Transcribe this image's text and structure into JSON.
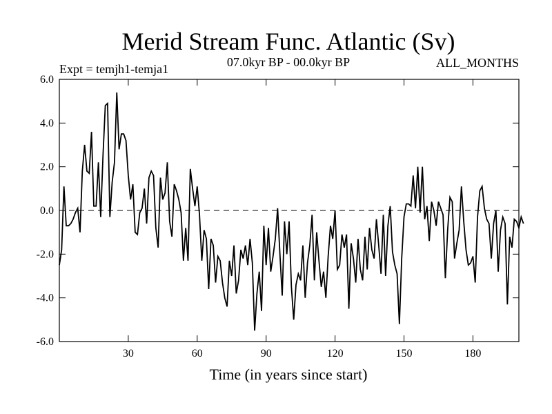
{
  "chart_data": {
    "type": "line",
    "title": "Merid Stream Func. Atlantic (Sv)",
    "subtitle_left": "Expt = temjh1-temja1",
    "subtitle_center": "07.0kyr BP - 00.0kyr BP",
    "subtitle_right": "ALL_MONTHS",
    "xlabel": "Time (in years since start)",
    "ylabel": "",
    "xlim": [
      0,
      200
    ],
    "ylim": [
      -6,
      6
    ],
    "x_ticks": [
      30,
      60,
      90,
      120,
      150,
      180
    ],
    "x_tick_labels": [
      "30",
      "60",
      "90",
      "120",
      "150",
      "180"
    ],
    "y_ticks": [
      -6,
      -4,
      -2,
      0,
      2,
      4,
      6
    ],
    "y_tick_labels": [
      "-6.0",
      "-4.0",
      "-2.0",
      "0.0",
      "2.0",
      "4.0",
      "6.0"
    ],
    "zero_line": {
      "value": 0,
      "style": "dashed"
    },
    "series": [
      {
        "name": "temjh1-temja1",
        "x_start": 0,
        "x_step": 1,
        "values": [
          -2.5,
          -1.8,
          1.1,
          -0.7,
          -0.7,
          -0.6,
          -0.4,
          -0.1,
          0.1,
          -1.0,
          1.8,
          3.0,
          1.8,
          1.7,
          3.6,
          0.2,
          0.2,
          2.2,
          -0.3,
          2.5,
          4.8,
          4.9,
          -0.3,
          1.3,
          2.2,
          5.4,
          2.8,
          3.5,
          3.5,
          3.2,
          1.6,
          0.5,
          1.2,
          -1.0,
          -1.1,
          -0.1,
          0.1,
          1.0,
          -0.6,
          1.5,
          1.8,
          1.6,
          -0.8,
          -1.7,
          1.5,
          0.5,
          0.8,
          2.2,
          -0.5,
          -1.2,
          1.2,
          0.9,
          0.5,
          -0.1,
          -2.3,
          -0.8,
          -2.3,
          1.9,
          1.0,
          0.2,
          1.1,
          -0.2,
          -2.3,
          -0.9,
          -1.3,
          -3.6,
          -1.3,
          -1.6,
          -3.3,
          -2.1,
          -2.3,
          -3.3,
          -4.0,
          -4.4,
          -2.3,
          -3.0,
          -1.6,
          -3.8,
          -3.2,
          -1.8,
          -2.2,
          -1.6,
          -2.5,
          -1.3,
          -2.4,
          -5.5,
          -3.8,
          -2.8,
          -4.6,
          -0.7,
          -2.5,
          -0.8,
          -2.8,
          -2.1,
          -1.3,
          0.1,
          -2.0,
          -3.9,
          -0.5,
          -2.0,
          -0.5,
          -3.5,
          -5.0,
          -3.4,
          -2.9,
          -3.2,
          -1.6,
          -4.0,
          -2.4,
          -1.6,
          -0.2,
          -3.2,
          -1.0,
          -2.3,
          -3.5,
          -2.8,
          -4.0,
          -2.1,
          -0.7,
          -1.3,
          0.0,
          -2.7,
          -2.5,
          -1.1,
          -1.7,
          -1.1,
          -4.5,
          -1.5,
          -2.2,
          -3.3,
          -1.3,
          -2.7,
          -3.2,
          -1.2,
          -2.7,
          -0.8,
          -1.8,
          -2.2,
          -0.4,
          -1.6,
          -2.9,
          -0.2,
          -3.0,
          -0.7,
          0.2,
          -1.9,
          -2.5,
          -2.9,
          -5.2,
          -2.2,
          -0.3,
          0.3,
          0.3,
          0.2,
          1.6,
          0.1,
          2.0,
          -0.1,
          2.0,
          -0.4,
          0.2,
          -1.4,
          0.4,
          0.0,
          -0.7,
          0.4,
          0.1,
          -0.2,
          -3.1,
          -0.9,
          0.6,
          0.4,
          -2.2,
          -1.5,
          -0.9,
          1.1,
          -0.5,
          -1.8,
          -2.5,
          -2.4,
          -2.1,
          -3.3,
          -0.3,
          0.9,
          1.1,
          0.1,
          -0.4,
          -0.6,
          -2.2,
          -0.6,
          0.0,
          -2.8,
          -0.9,
          -0.3,
          -0.6,
          -4.3,
          -1.2,
          -1.7,
          -0.4,
          -0.5,
          -0.8,
          -0.3,
          -0.6
        ]
      }
    ]
  }
}
